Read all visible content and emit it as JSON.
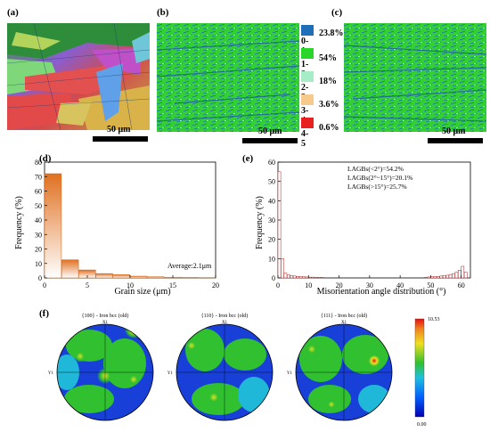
{
  "panels": {
    "a": {
      "label": "(a)",
      "scale": "50 μm"
    },
    "b": {
      "label": "(b)",
      "scale": "50 μm"
    },
    "c": {
      "label": "(c)",
      "scale": "50 μm"
    },
    "d": {
      "label": "(d)"
    },
    "e": {
      "label": "(e)"
    },
    "f": {
      "label": "(f)"
    }
  },
  "kam_legend": [
    {
      "range": "0-1",
      "percent": "23.8%",
      "color": "#1f6fb8"
    },
    {
      "range": "1-2",
      "percent": "54%",
      "color": "#2ad62a"
    },
    {
      "range": "2-3",
      "percent": "18%",
      "color": "#a6ecc7"
    },
    {
      "range": "3-4",
      "percent": "3.6%",
      "color": "#f7c98a"
    },
    {
      "range": "4-5",
      "percent": "0.6%",
      "color": "#e82020"
    }
  ],
  "pole_figures": {
    "titles": [
      "{100} - Iron bcc (old)",
      "{110} - Iron bcc (old)",
      "{111} - Iron bcc (old)"
    ],
    "axis_x": "X1",
    "axis_y": "Y1",
    "colorbar_max": "10.53",
    "colorbar_min": "0.00"
  },
  "chart_data": [
    {
      "type": "bar",
      "panel": "d",
      "xlabel": "Grain size (μm)",
      "ylabel": "Frequency (%)",
      "annotation": "Average:2.1μm",
      "xlim": [
        0,
        20
      ],
      "ylim": [
        0,
        80
      ],
      "xticks": [
        0,
        5,
        10,
        15,
        20
      ],
      "yticks": [
        0,
        10,
        20,
        30,
        40,
        50,
        60,
        70,
        80
      ],
      "bin_centers": [
        1,
        3,
        5,
        7,
        9,
        11,
        13,
        15,
        17,
        19
      ],
      "values": [
        72,
        12.5,
        5.5,
        3,
        2.2,
        1.2,
        0.8,
        0.5,
        0.3,
        0.2
      ]
    },
    {
      "type": "bar",
      "panel": "e",
      "xlabel": "Misorientation angle distribution (°)",
      "ylabel": "Frequency (%)",
      "annotations": [
        "LAGBs(<2°)=54.2%",
        "LAGBs(2°~15°)=20.1%",
        "LAGBs(>15°)=25.7%"
      ],
      "xlim": [
        0,
        63
      ],
      "ylim": [
        0,
        60
      ],
      "xticks": [
        0,
        10,
        20,
        30,
        40,
        50,
        60
      ],
      "yticks": [
        0,
        10,
        20,
        30,
        40,
        50,
        60
      ],
      "bin_centers": [
        0.5,
        1.5,
        2.5,
        3.5,
        4.5,
        5.5,
        6.5,
        7.5,
        8.5,
        9.5,
        10.5,
        11.5,
        12.5,
        13.5,
        14.5,
        48.5,
        49.5,
        50.5,
        51.5,
        52.5,
        53.5,
        54.5,
        55.5,
        56.5,
        57.5,
        58.5,
        59.5,
        60.5,
        61.5
      ],
      "values": [
        55,
        10,
        2.5,
        1.5,
        1.2,
        1,
        0.8,
        0.7,
        0.6,
        0.5,
        0.4,
        0.4,
        0.3,
        0.3,
        0.3,
        0.3,
        0.5,
        0.6,
        0.7,
        0.8,
        1,
        1.2,
        1.4,
        1.8,
        2.2,
        3,
        4,
        6,
        3
      ]
    }
  ]
}
